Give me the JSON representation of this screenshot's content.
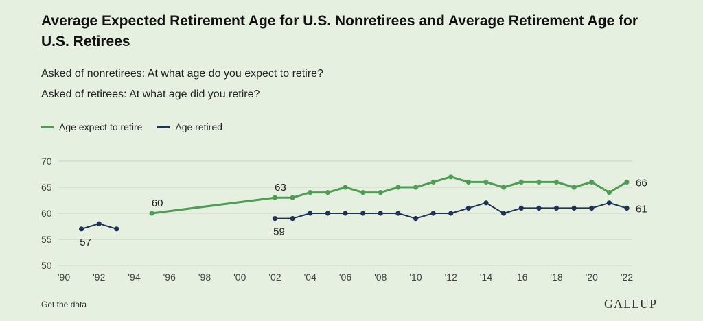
{
  "header": {
    "title": "Average Expected Retirement Age for U.S. Nonretirees and Average Retirement Age for U.S. Retirees",
    "subtitle_1": "Asked of nonretirees: At what age do you expect to retire?",
    "subtitle_2": "Asked of retirees: At what age did you retire?"
  },
  "footer": {
    "link_label": "Get the data",
    "logo_text": "GALLUP"
  },
  "colors": {
    "expect": "#4f9d54",
    "retired": "#1f3156",
    "grid": "#c9d6c6",
    "background": "#e6f0e1"
  },
  "chart_data": {
    "type": "line",
    "ylim": [
      50,
      70
    ],
    "yticks": [
      50,
      55,
      60,
      65,
      70
    ],
    "xlim": [
      1990,
      2022
    ],
    "xticks": [
      {
        "x": 1990,
        "label": "'90"
      },
      {
        "x": 1992,
        "label": "'92"
      },
      {
        "x": 1994,
        "label": "'94"
      },
      {
        "x": 1996,
        "label": "'96"
      },
      {
        "x": 1998,
        "label": "'98"
      },
      {
        "x": 2000,
        "label": "'00"
      },
      {
        "x": 2002,
        "label": "'02"
      },
      {
        "x": 2004,
        "label": "'04"
      },
      {
        "x": 2006,
        "label": "'06"
      },
      {
        "x": 2008,
        "label": "'08"
      },
      {
        "x": 2010,
        "label": "'10"
      },
      {
        "x": 2012,
        "label": "'12"
      },
      {
        "x": 2014,
        "label": "'14"
      },
      {
        "x": 2016,
        "label": "'16"
      },
      {
        "x": 2018,
        "label": "'18"
      },
      {
        "x": 2020,
        "label": "'20"
      },
      {
        "x": 2022,
        "label": "'22"
      }
    ],
    "grid": true,
    "legend": "top-left",
    "series": [
      {
        "name": "Age expect to retire",
        "color": "#4f9d54",
        "segments": [
          [
            {
              "x": 1995,
              "y": 60
            },
            {
              "x": 2002,
              "y": 63
            },
            {
              "x": 2003,
              "y": 63
            },
            {
              "x": 2004,
              "y": 64
            },
            {
              "x": 2005,
              "y": 64
            },
            {
              "x": 2006,
              "y": 65
            },
            {
              "x": 2007,
              "y": 64
            },
            {
              "x": 2008,
              "y": 64
            },
            {
              "x": 2009,
              "y": 65
            },
            {
              "x": 2010,
              "y": 65
            },
            {
              "x": 2011,
              "y": 66
            },
            {
              "x": 2012,
              "y": 67
            },
            {
              "x": 2013,
              "y": 66
            },
            {
              "x": 2014,
              "y": 66
            },
            {
              "x": 2015,
              "y": 65
            },
            {
              "x": 2016,
              "y": 66
            },
            {
              "x": 2017,
              "y": 66
            },
            {
              "x": 2018,
              "y": 66
            },
            {
              "x": 2019,
              "y": 65
            },
            {
              "x": 2020,
              "y": 66
            },
            {
              "x": 2021,
              "y": 64
            },
            {
              "x": 2022,
              "y": 66
            }
          ]
        ],
        "labels": [
          {
            "x": 1995,
            "text": "60",
            "pos": "above"
          },
          {
            "x": 2002,
            "text": "63",
            "pos": "above"
          },
          {
            "x": 2022,
            "text": "66",
            "pos": "right"
          }
        ]
      },
      {
        "name": "Age retired",
        "color": "#1f3156",
        "segments": [
          [
            {
              "x": 1991,
              "y": 57
            },
            {
              "x": 1992,
              "y": 58
            },
            {
              "x": 1993,
              "y": 57
            }
          ],
          [
            {
              "x": 2002,
              "y": 59
            },
            {
              "x": 2003,
              "y": 59
            },
            {
              "x": 2004,
              "y": 60
            },
            {
              "x": 2005,
              "y": 60
            },
            {
              "x": 2006,
              "y": 60
            },
            {
              "x": 2007,
              "y": 60
            },
            {
              "x": 2008,
              "y": 60
            },
            {
              "x": 2009,
              "y": 60
            },
            {
              "x": 2010,
              "y": 59
            },
            {
              "x": 2011,
              "y": 60
            },
            {
              "x": 2012,
              "y": 60
            },
            {
              "x": 2013,
              "y": 61
            },
            {
              "x": 2014,
              "y": 62
            },
            {
              "x": 2015,
              "y": 60
            },
            {
              "x": 2016,
              "y": 61
            },
            {
              "x": 2017,
              "y": 61
            },
            {
              "x": 2018,
              "y": 61
            },
            {
              "x": 2019,
              "y": 61
            },
            {
              "x": 2020,
              "y": 61
            },
            {
              "x": 2021,
              "y": 62
            },
            {
              "x": 2022,
              "y": 61
            }
          ]
        ],
        "labels": [
          {
            "x": 1991,
            "text": "57",
            "pos": "below"
          },
          {
            "x": 2002,
            "text": "59",
            "pos": "below"
          },
          {
            "x": 2022,
            "text": "61",
            "pos": "right"
          }
        ]
      }
    ]
  }
}
